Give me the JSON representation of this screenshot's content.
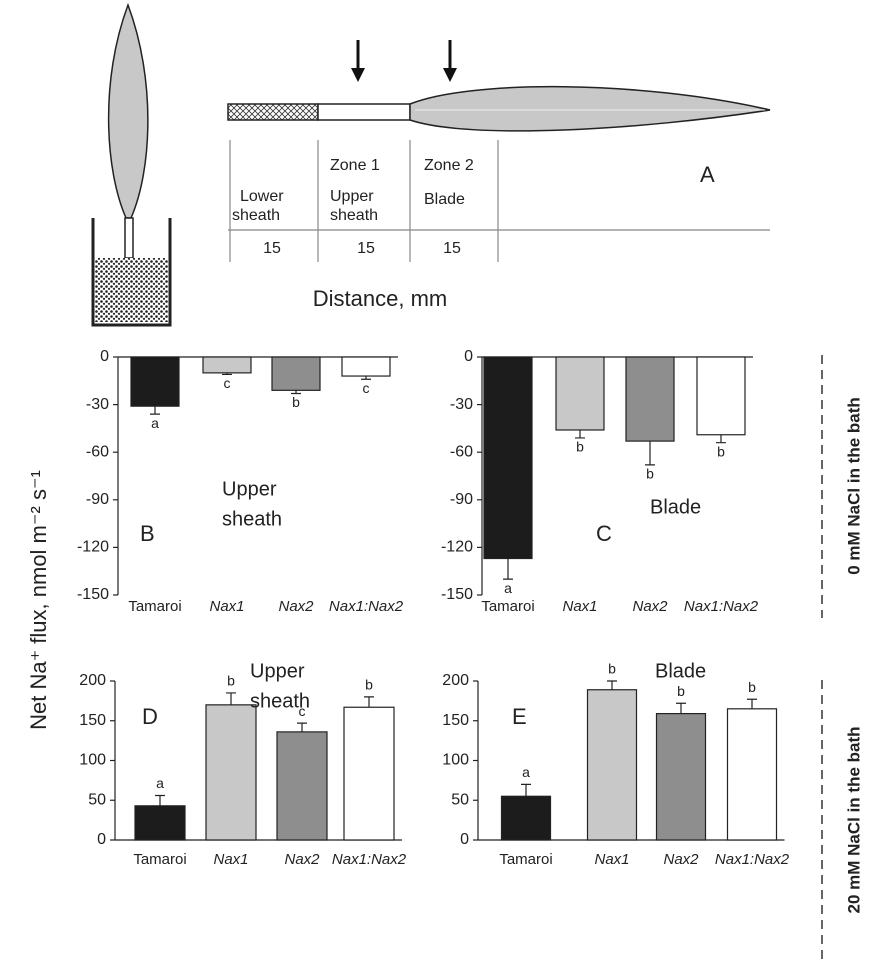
{
  "diagram": {
    "panel_label": "A",
    "distance_label": "Distance, mm",
    "zones": [
      {
        "name": [
          "Lower",
          "sheath"
        ],
        "length": 15
      },
      {
        "zone": "Zone 1",
        "name": [
          "Upper",
          "sheath"
        ],
        "length": 15
      },
      {
        "zone": "Zone 2",
        "name": [
          "Blade"
        ],
        "length": 15
      }
    ]
  },
  "y_axis_label": "Net Na⁺ flux, nmol m⁻² s⁻¹",
  "side_labels": [
    "0 mM NaCl in the bath",
    "20 mM NaCl in the bath"
  ],
  "chart_data": [
    {
      "type": "bar",
      "panel_label": "B",
      "annotation": [
        "Upper",
        "sheath"
      ],
      "categories": [
        "Tamaroi",
        "Nax1",
        "Nax2",
        "Nax1:Nax2"
      ],
      "values": [
        -31,
        -10,
        -21,
        -12
      ],
      "errors": [
        5,
        1,
        2,
        2
      ],
      "letters": [
        "a",
        "c",
        "b",
        "c"
      ],
      "colors": [
        "#1c1c1c",
        "#c8c8c8",
        "#8e8e8e",
        "#ffffff"
      ],
      "ylim": [
        -150,
        0
      ],
      "yticks": [
        -150,
        -120,
        -90,
        -60,
        -30,
        0
      ]
    },
    {
      "type": "bar",
      "panel_label": "C",
      "annotation": [
        "Blade"
      ],
      "categories": [
        "Tamaroi",
        "Nax1",
        "Nax2",
        "Nax1:Nax2"
      ],
      "values": [
        -127,
        -46,
        -53,
        -49
      ],
      "errors": [
        13,
        5,
        15,
        5
      ],
      "letters": [
        "a",
        "b",
        "b",
        "b"
      ],
      "colors": [
        "#1c1c1c",
        "#c8c8c8",
        "#8e8e8e",
        "#ffffff"
      ],
      "ylim": [
        -150,
        0
      ],
      "yticks": [
        -150,
        -120,
        -90,
        -60,
        -30,
        0
      ]
    },
    {
      "type": "bar",
      "panel_label": "D",
      "annotation": [
        "Upper",
        "sheath"
      ],
      "categories": [
        "Tamaroi",
        "Nax1",
        "Nax2",
        "Nax1:Nax2"
      ],
      "values": [
        43,
        170,
        136,
        167
      ],
      "errors": [
        13,
        15,
        11,
        13
      ],
      "letters": [
        "a",
        "b",
        "c",
        "b"
      ],
      "colors": [
        "#1c1c1c",
        "#c8c8c8",
        "#8e8e8e",
        "#ffffff"
      ],
      "ylim": [
        0,
        200
      ],
      "yticks": [
        0,
        50,
        100,
        150,
        200
      ]
    },
    {
      "type": "bar",
      "panel_label": "E",
      "annotation": [
        "Blade"
      ],
      "categories": [
        "Tamaroi",
        "Nax1",
        "Nax2",
        "Nax1:Nax2"
      ],
      "values": [
        55,
        189,
        159,
        165
      ],
      "errors": [
        15,
        11,
        13,
        12
      ],
      "letters": [
        "a",
        "b",
        "b",
        "b"
      ],
      "colors": [
        "#1c1c1c",
        "#c8c8c8",
        "#8e8e8e",
        "#ffffff"
      ],
      "ylim": [
        0,
        200
      ],
      "yticks": [
        0,
        50,
        100,
        150,
        200
      ]
    }
  ]
}
